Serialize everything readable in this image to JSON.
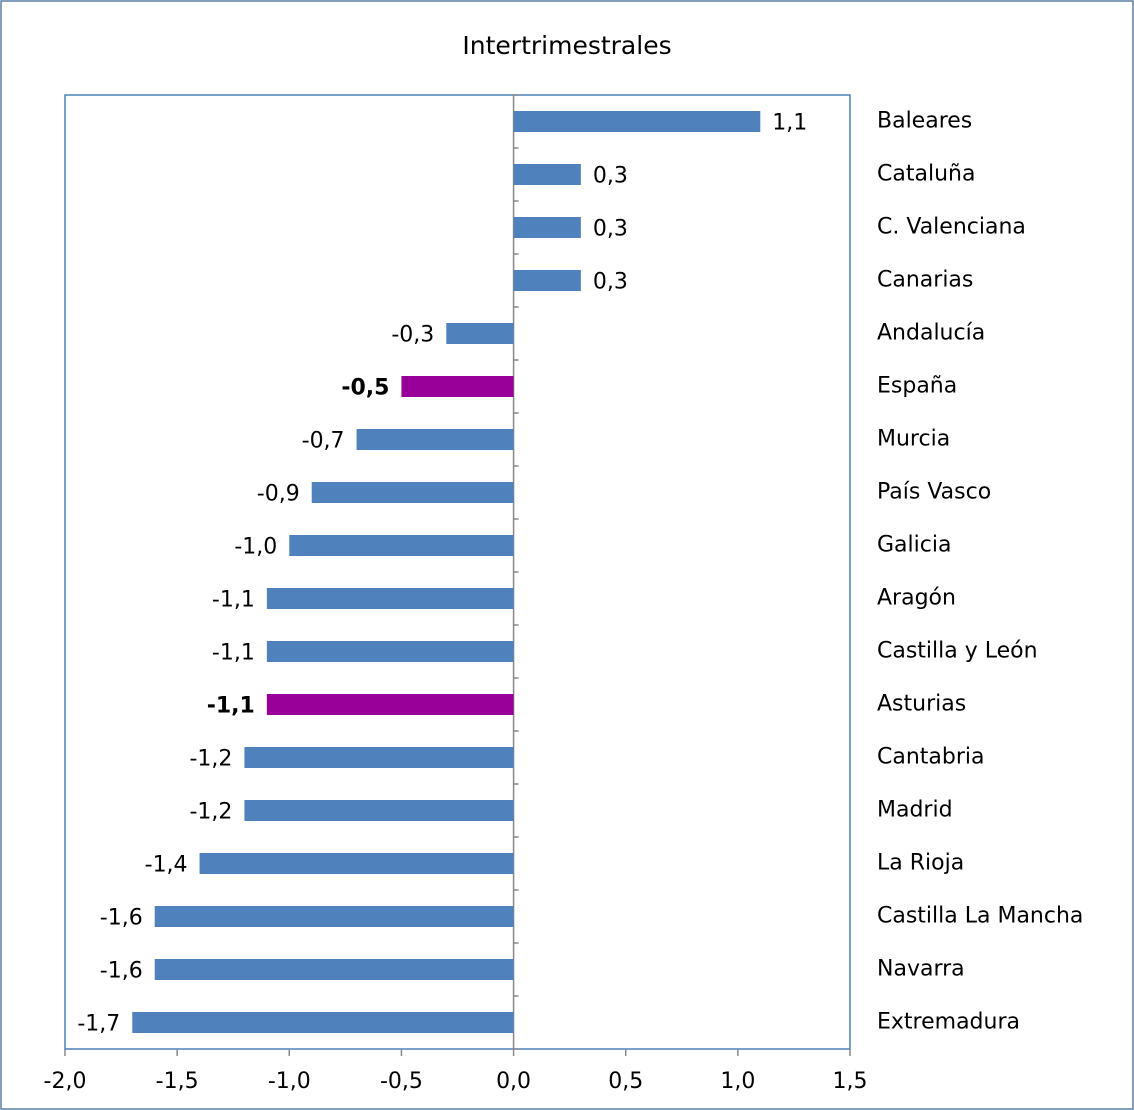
{
  "chart_data": {
    "type": "barh",
    "title": "Intertrimestrales",
    "title_color": "#ff0000",
    "categories": [
      "Baleares",
      "Cataluña",
      "C. Valenciana",
      "Canarias",
      "Andalucía",
      "España",
      "Murcia",
      "País Vasco",
      "Galicia",
      "Aragón",
      "Castilla y León",
      "Asturias",
      "Cantabria",
      "Madrid",
      "La Rioja",
      "Castilla La Mancha",
      "Navarra",
      "Extremadura"
    ],
    "values": [
      1.1,
      0.3,
      0.3,
      0.3,
      -0.3,
      -0.5,
      -0.7,
      -0.9,
      -1.0,
      -1.1,
      -1.1,
      -1.1,
      -1.2,
      -1.2,
      -1.4,
      -1.6,
      -1.6,
      -1.7
    ],
    "value_labels": [
      "1,1",
      "0,3",
      "0,3",
      "0,3",
      "-0,3",
      "-0,5",
      "-0,7",
      "-0,9",
      "-1,0",
      "-1,1",
      "-1,1",
      "-1,1",
      "-1,2",
      "-1,2",
      "-1,4",
      "-1,6",
      "-1,6",
      "-1,7"
    ],
    "colors": [
      "#4f81bd",
      "#4f81bd",
      "#4f81bd",
      "#4f81bd",
      "#4f81bd",
      "#990099",
      "#4f81bd",
      "#4f81bd",
      "#4f81bd",
      "#4f81bd",
      "#4f81bd",
      "#990099",
      "#4f81bd",
      "#4f81bd",
      "#4f81bd",
      "#4f81bd",
      "#4f81bd",
      "#4f81bd"
    ],
    "bold_labels": [
      false,
      false,
      false,
      false,
      false,
      true,
      false,
      false,
      false,
      false,
      false,
      true,
      false,
      false,
      false,
      false,
      false,
      false
    ],
    "xlim": [
      -2.0,
      1.5
    ],
    "xticks": [
      {
        "value": -2.0,
        "label": "-2,0"
      },
      {
        "value": -1.5,
        "label": "-1,5"
      },
      {
        "value": -1.0,
        "label": "-1,0"
      },
      {
        "value": -0.5,
        "label": "-0,5"
      },
      {
        "value": 0.0,
        "label": "0,0"
      },
      {
        "value": 0.5,
        "label": "0,5"
      },
      {
        "value": 1.0,
        "label": "1,0"
      },
      {
        "value": 1.5,
        "label": "1,5"
      }
    ]
  }
}
